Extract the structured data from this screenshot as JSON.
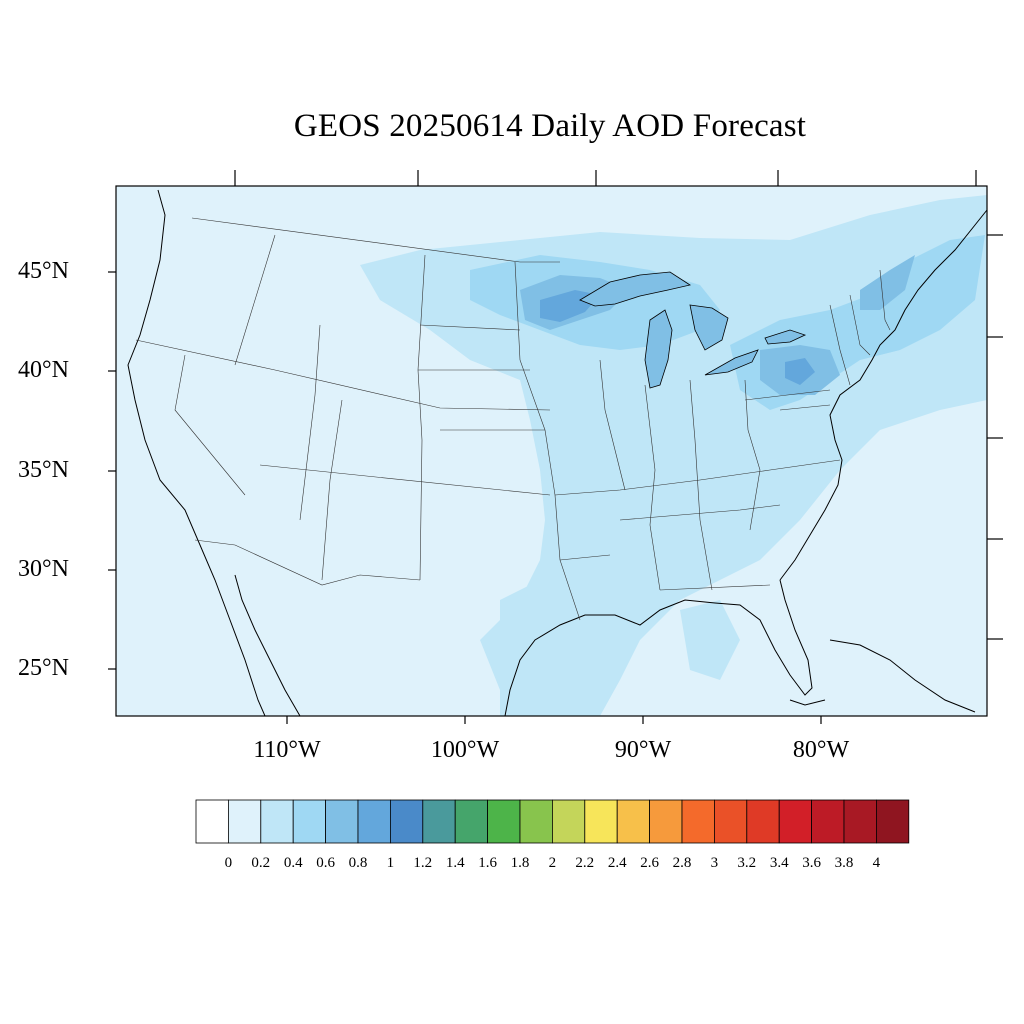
{
  "title": "GEOS 20250614 Daily AOD Forecast",
  "lat_labels": [
    "45°N",
    "40°N",
    "35°N",
    "30°N",
    "25°N"
  ],
  "lon_labels": [
    "110°W",
    "100°W",
    "90°W",
    "80°W"
  ],
  "colorbar": {
    "labels": [
      "0",
      "0.2",
      "0.4",
      "0.6",
      "0.8",
      "1",
      "1.2",
      "1.4",
      "1.6",
      "1.8",
      "2",
      "2.2",
      "2.4",
      "2.6",
      "2.8",
      "3",
      "3.2",
      "3.4",
      "3.6",
      "3.8",
      "4"
    ],
    "colors": [
      "#ffffff",
      "#dff2fb",
      "#bfe6f7",
      "#9fd8f3",
      "#80bfe5",
      "#63a7dc",
      "#4a8ac9",
      "#4a9a9c",
      "#45a56b",
      "#4db449",
      "#88c44d",
      "#c4d55a",
      "#f7e55a",
      "#f7c04a",
      "#f69a3c",
      "#f46a2b",
      "#ea5128",
      "#df3a26",
      "#d21f28",
      "#bd1b26",
      "#a81924",
      "#8f1520"
    ]
  },
  "map": {
    "background_color": "#dff2fb",
    "aod_regions": [
      {
        "name": "upper-midwest-plume",
        "level": "0.6-1.0"
      },
      {
        "name": "pennsylvania-plume",
        "level": "0.8-1.0"
      },
      {
        "name": "new-england-plume",
        "level": "0.4-0.6"
      }
    ]
  }
}
